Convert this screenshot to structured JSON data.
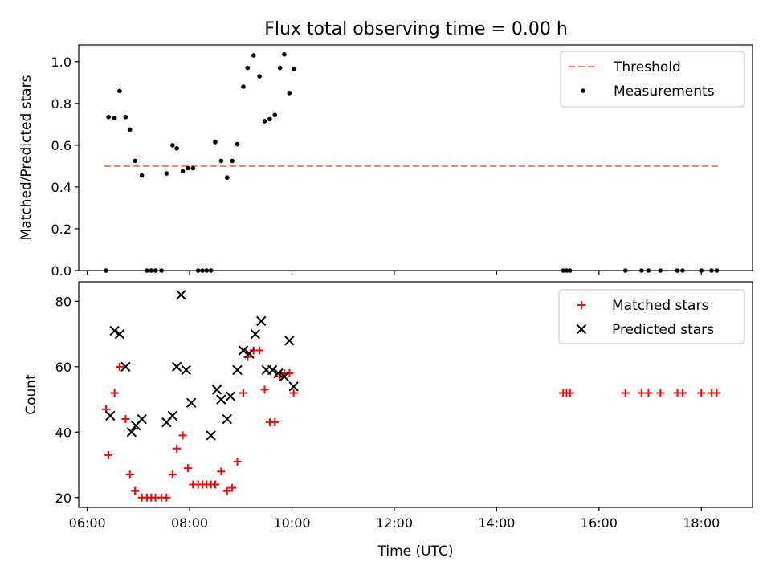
{
  "figure": {
    "title": "Flux total observing time = 0.00 h"
  },
  "colors": {
    "threshold": "#ff7f7f",
    "measurements": "#000000",
    "matched": "#ff0000",
    "predicted": "#000000"
  },
  "chart_data": [
    {
      "type": "scatter",
      "title": "Flux total observing time = 0.00 h",
      "xlabel": "",
      "ylabel": "Matched/Predicted stars",
      "xlim": [
        "05:50",
        "19:00"
      ],
      "ylim": [
        0,
        1.08
      ],
      "xticks": [
        "06:00",
        "08:00",
        "10:00",
        "12:00",
        "14:00",
        "16:00",
        "18:00"
      ],
      "show_xtick_labels": false,
      "yticks": [
        0.0,
        0.2,
        0.4,
        0.6,
        0.8,
        1.0
      ],
      "ytick_labels": [
        "0.0",
        "0.2",
        "0.4",
        "0.6",
        "0.8",
        "1.0"
      ],
      "legend_position": "top-right",
      "grid": false,
      "series": [
        {
          "name": "Threshold",
          "kind": "dashed-line",
          "color": "#ff7f7f",
          "points": [
            [
              "06:20",
              0.5
            ],
            [
              "18:20",
              0.5
            ]
          ]
        },
        {
          "name": "Measurements",
          "kind": "dot",
          "color": "#000000",
          "points": [
            [
              "06:22",
              0.0
            ],
            [
              "06:25",
              0.735
            ],
            [
              "06:32",
              0.73
            ],
            [
              "06:38",
              0.86
            ],
            [
              "06:45",
              0.735
            ],
            [
              "06:50",
              0.675
            ],
            [
              "06:56",
              0.525
            ],
            [
              "07:04",
              0.455
            ],
            [
              "07:10",
              0.0
            ],
            [
              "07:15",
              0.0
            ],
            [
              "07:20",
              0.0
            ],
            [
              "07:27",
              0.0
            ],
            [
              "07:33",
              0.465
            ],
            [
              "07:40",
              0.6
            ],
            [
              "07:45",
              0.585
            ],
            [
              "07:52",
              0.475
            ],
            [
              "07:58",
              0.49
            ],
            [
              "08:04",
              0.49
            ],
            [
              "08:10",
              0.0
            ],
            [
              "08:15",
              0.0
            ],
            [
              "08:20",
              0.0
            ],
            [
              "08:25",
              0.0
            ],
            [
              "08:30",
              0.615
            ],
            [
              "08:37",
              0.525
            ],
            [
              "08:44",
              0.445
            ],
            [
              "08:50",
              0.525
            ],
            [
              "08:56",
              0.605
            ],
            [
              "09:03",
              0.88
            ],
            [
              "09:08",
              0.97
            ],
            [
              "09:15",
              1.03
            ],
            [
              "09:22",
              0.93
            ],
            [
              "09:28",
              0.715
            ],
            [
              "09:34",
              0.725
            ],
            [
              "09:40",
              0.745
            ],
            [
              "09:46",
              0.97
            ],
            [
              "09:51",
              1.035
            ],
            [
              "09:57",
              0.85
            ],
            [
              "10:02",
              0.965
            ],
            [
              "15:18",
              0.0
            ],
            [
              "15:22",
              0.0
            ],
            [
              "15:26",
              0.0
            ],
            [
              "16:31",
              0.0
            ],
            [
              "16:50",
              0.0
            ],
            [
              "16:58",
              0.0
            ],
            [
              "17:12",
              0.0
            ],
            [
              "17:32",
              0.0
            ],
            [
              "17:38",
              0.0
            ],
            [
              "18:00",
              0.0
            ],
            [
              "18:12",
              0.0
            ],
            [
              "18:18",
              0.0
            ]
          ]
        }
      ]
    },
    {
      "type": "scatter",
      "title": "",
      "xlabel": "Time (UTC)",
      "ylabel": "Count",
      "xlim": [
        "05:50",
        "19:00"
      ],
      "ylim": [
        17,
        86
      ],
      "xticks": [
        "06:00",
        "08:00",
        "10:00",
        "12:00",
        "14:00",
        "16:00",
        "18:00"
      ],
      "show_xtick_labels": true,
      "yticks": [
        20,
        40,
        60,
        80
      ],
      "ytick_labels": [
        "20",
        "40",
        "60",
        "80"
      ],
      "legend_position": "top-right",
      "grid": false,
      "series": [
        {
          "name": "Matched stars",
          "kind": "plus",
          "color": "#ff0000",
          "points": [
            [
              "06:22",
              47
            ],
            [
              "06:25",
              33
            ],
            [
              "06:32",
              52
            ],
            [
              "06:38",
              60
            ],
            [
              "06:45",
              44
            ],
            [
              "06:50",
              27
            ],
            [
              "06:56",
              22
            ],
            [
              "07:04",
              20
            ],
            [
              "07:10",
              20
            ],
            [
              "07:15",
              20
            ],
            [
              "07:20",
              20
            ],
            [
              "07:27",
              20
            ],
            [
              "07:33",
              20
            ],
            [
              "07:40",
              27
            ],
            [
              "07:45",
              35
            ],
            [
              "07:52",
              39
            ],
            [
              "07:58",
              29
            ],
            [
              "08:04",
              24
            ],
            [
              "08:10",
              24
            ],
            [
              "08:15",
              24
            ],
            [
              "08:20",
              24
            ],
            [
              "08:25",
              24
            ],
            [
              "08:30",
              24
            ],
            [
              "08:37",
              28
            ],
            [
              "08:44",
              22
            ],
            [
              "08:50",
              23
            ],
            [
              "08:56",
              31
            ],
            [
              "09:03",
              52
            ],
            [
              "09:08",
              63
            ],
            [
              "09:15",
              65
            ],
            [
              "09:22",
              65
            ],
            [
              "09:28",
              53
            ],
            [
              "09:34",
              43
            ],
            [
              "09:40",
              43
            ],
            [
              "09:46",
              57
            ],
            [
              "09:51",
              58
            ],
            [
              "09:57",
              58
            ],
            [
              "10:02",
              52
            ],
            [
              "15:18",
              52
            ],
            [
              "15:22",
              52
            ],
            [
              "15:26",
              52
            ],
            [
              "16:31",
              52
            ],
            [
              "16:50",
              52
            ],
            [
              "16:58",
              52
            ],
            [
              "17:12",
              52
            ],
            [
              "17:32",
              52
            ],
            [
              "17:38",
              52
            ],
            [
              "18:00",
              52
            ],
            [
              "18:12",
              52
            ],
            [
              "18:18",
              52
            ]
          ]
        },
        {
          "name": "Predicted stars",
          "kind": "x",
          "color": "#000000",
          "points": [
            [
              "06:27",
              45
            ],
            [
              "06:32",
              71
            ],
            [
              "06:38",
              70
            ],
            [
              "06:45",
              60
            ],
            [
              "06:52",
              40
            ],
            [
              "06:57",
              42
            ],
            [
              "07:04",
              44
            ],
            [
              "07:33",
              43
            ],
            [
              "07:40",
              45
            ],
            [
              "07:45",
              60
            ],
            [
              "07:50",
              82
            ],
            [
              "07:56",
              59
            ],
            [
              "08:02",
              49
            ],
            [
              "08:25",
              39
            ],
            [
              "08:32",
              53
            ],
            [
              "08:37",
              50
            ],
            [
              "08:44",
              44
            ],
            [
              "08:48",
              51
            ],
            [
              "08:56",
              59
            ],
            [
              "09:03",
              65
            ],
            [
              "09:10",
              64
            ],
            [
              "09:17",
              70
            ],
            [
              "09:24",
              74
            ],
            [
              "09:30",
              59
            ],
            [
              "09:37",
              59
            ],
            [
              "09:44",
              58
            ],
            [
              "09:51",
              57
            ],
            [
              "09:57",
              68
            ],
            [
              "10:02",
              54
            ]
          ]
        }
      ]
    }
  ]
}
